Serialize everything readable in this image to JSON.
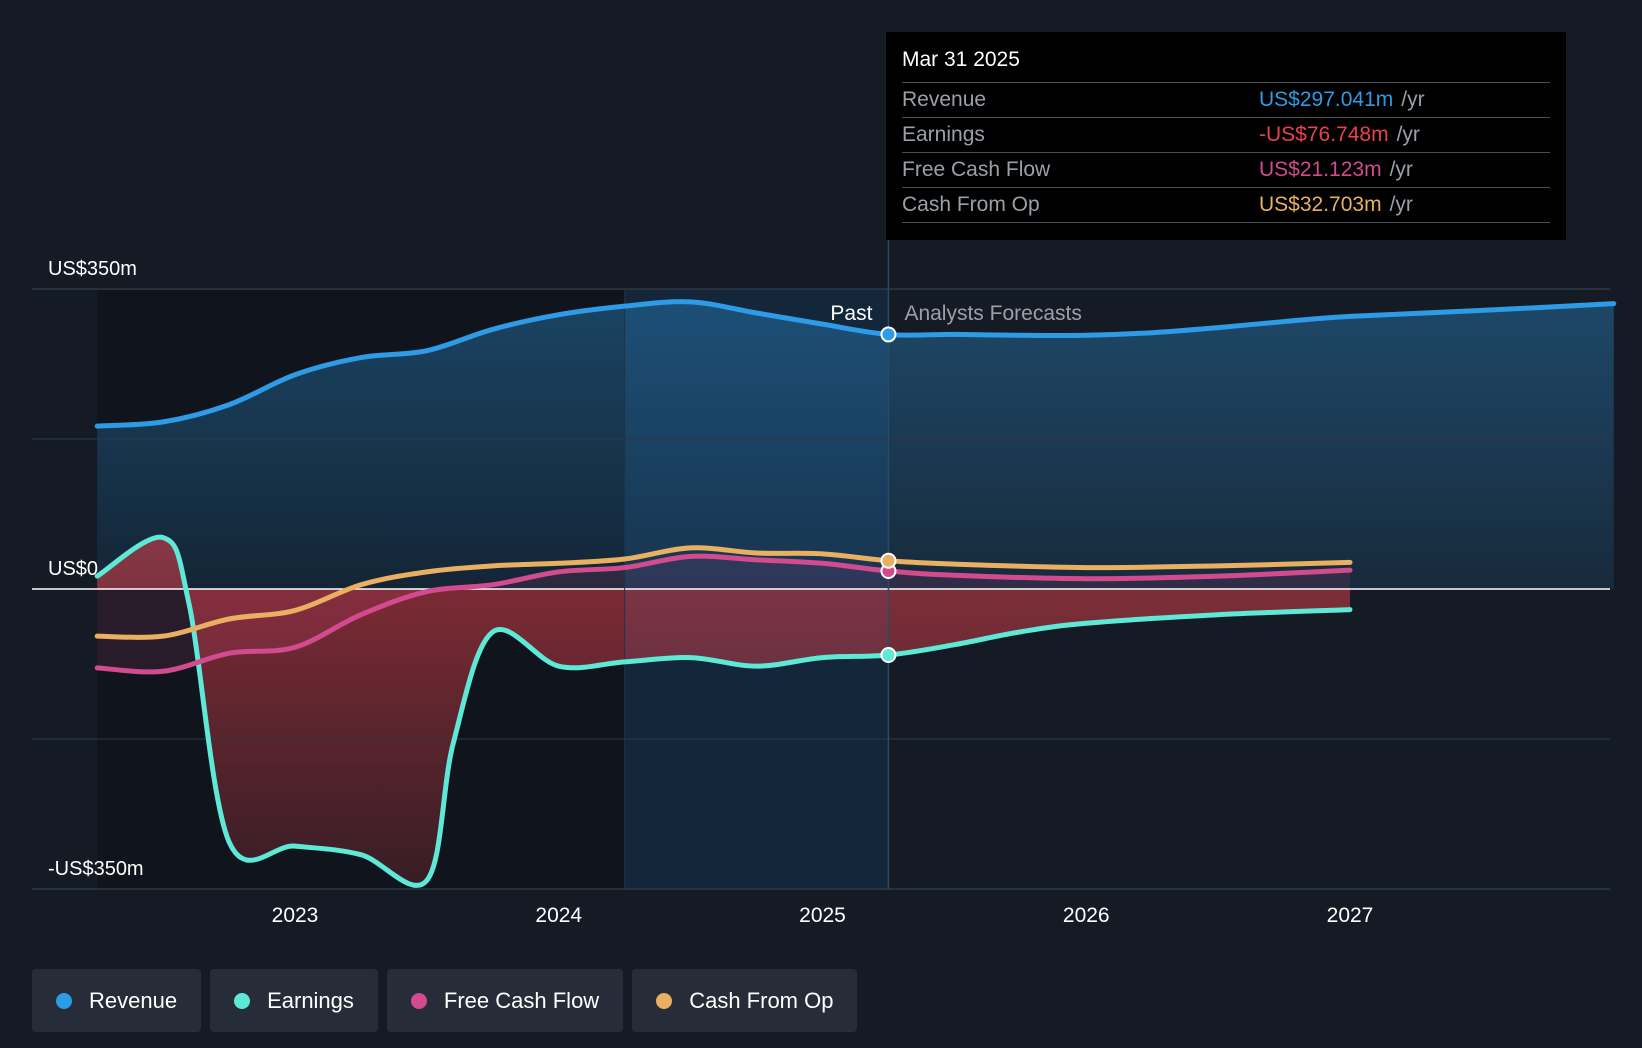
{
  "tooltip": {
    "date": "Mar 31 2025",
    "rows": [
      {
        "label": "Revenue",
        "value": "US$297.041m",
        "unit": "/yr",
        "color": "#2d9be6"
      },
      {
        "label": "Earnings",
        "value": "-US$76.748m",
        "unit": "/yr",
        "color": "#e8414c"
      },
      {
        "label": "Free Cash Flow",
        "value": "US$21.123m",
        "unit": "/yr",
        "color": "#d24b8f"
      },
      {
        "label": "Cash From Op",
        "value": "US$32.703m",
        "unit": "/yr",
        "color": "#e8b060"
      }
    ]
  },
  "legend": [
    {
      "label": "Revenue",
      "color": "#2d9be6"
    },
    {
      "label": "Earnings",
      "color": "#5ee8d6"
    },
    {
      "label": "Free Cash Flow",
      "color": "#d24b8f"
    },
    {
      "label": "Cash From Op",
      "color": "#e8b060"
    }
  ],
  "chart_data": {
    "type": "line",
    "y_tick_labels": [
      "US$350m",
      "US$0",
      "-US$350m"
    ],
    "ylim": [
      -350,
      350
    ],
    "x_tick_labels": [
      "2023",
      "2024",
      "2025",
      "2026",
      "2027"
    ],
    "x_ticks": [
      2023,
      2024,
      2025,
      2026,
      2027
    ],
    "xlim": [
      2022.0,
      2028.0
    ],
    "past_label": "Past",
    "forecast_label": "Analysts Forecasts",
    "divider_x": 2025.25,
    "highlight_start_x": 2024.25,
    "series": [
      {
        "name": "Revenue",
        "color": "#2d9be6",
        "fill": true,
        "x": [
          2022.25,
          2022.5,
          2022.75,
          2023.0,
          2023.25,
          2023.5,
          2023.75,
          2024.0,
          2024.25,
          2024.5,
          2024.75,
          2025.0,
          2025.25,
          2025.5,
          2025.75,
          2026.0,
          2026.25,
          2026.5,
          2026.75,
          2027.0,
          2027.5,
          2028.0
        ],
        "y": [
          190,
          195,
          215,
          250,
          270,
          278,
          303,
          320,
          330,
          335,
          322,
          309,
          297,
          297,
          296,
          296,
          299,
          305,
          312,
          318,
          325,
          333
        ]
      },
      {
        "name": "Earnings",
        "color": "#5ee8d6",
        "fill": true,
        "x": [
          2022.25,
          2022.5,
          2022.6,
          2022.75,
          2023.0,
          2023.25,
          2023.5,
          2023.6,
          2023.75,
          2024.0,
          2024.25,
          2024.5,
          2024.75,
          2025.0,
          2025.25,
          2025.5,
          2025.75,
          2026.0,
          2026.5,
          2027.0
        ],
        "y": [
          15,
          60,
          -20,
          -295,
          -300,
          -310,
          -340,
          -180,
          -50,
          -90,
          -85,
          -80,
          -90,
          -80,
          -77,
          -65,
          -50,
          -40,
          -30,
          -24
        ]
      },
      {
        "name": "Free Cash Flow",
        "color": "#d24b8f",
        "fill": true,
        "x": [
          2022.25,
          2022.5,
          2022.75,
          2023.0,
          2023.25,
          2023.5,
          2023.75,
          2024.0,
          2024.25,
          2024.5,
          2024.75,
          2025.0,
          2025.25,
          2025.5,
          2026.0,
          2026.5,
          2027.0
        ],
        "y": [
          -92,
          -96,
          -75,
          -68,
          -30,
          -3,
          5,
          20,
          25,
          38,
          34,
          30,
          21,
          16,
          12,
          15,
          22
        ]
      },
      {
        "name": "Cash From Op",
        "color": "#e8b060",
        "fill": false,
        "x": [
          2022.25,
          2022.5,
          2022.75,
          2023.0,
          2023.25,
          2023.5,
          2023.75,
          2024.0,
          2024.25,
          2024.5,
          2024.75,
          2025.0,
          2025.25,
          2025.5,
          2026.0,
          2026.5,
          2027.0
        ],
        "y": [
          -55,
          -55,
          -35,
          -25,
          5,
          20,
          27,
          30,
          35,
          48,
          42,
          41,
          33,
          29,
          25,
          27,
          31
        ]
      }
    ]
  }
}
